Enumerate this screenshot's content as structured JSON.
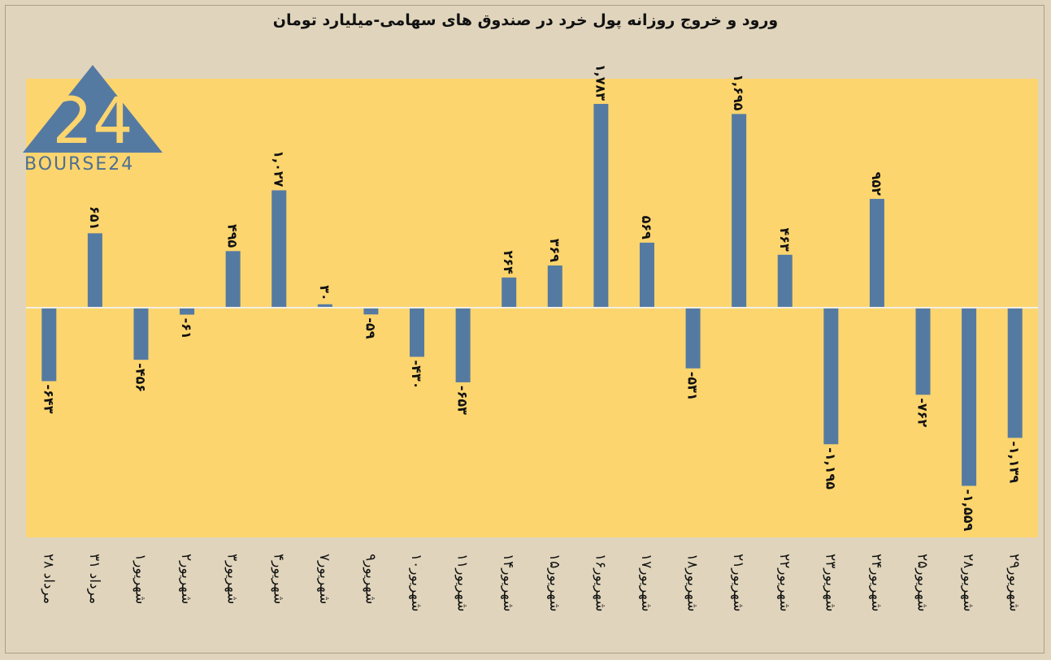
{
  "chart_data": {
    "type": "bar",
    "title": "ورود و خروج روزانه پول خرد در صندوق های سهامی-میلیارد تومان",
    "categories": [
      "۲۸ مرداد",
      "۳۱ مرداد",
      "۱شهریور",
      "۲شهریور",
      "۳شهریور",
      "۴شهریور",
      "۷شهریور",
      "۹شهریور",
      "۱۰شهریور",
      "۱۱شهریور",
      "۱۴شهریور",
      "۱۵شهریور",
      "۱۶شهریور",
      "۱۷شهریور",
      "۱۸شهریور",
      "۲۱شهریور",
      "۲۲شهریور",
      "۲۳شهریور",
      "۲۴شهریور",
      "۲۵شهریور",
      "۲۸شهریور",
      "۲۹شهریور"
    ],
    "values": [
      -643,
      651,
      -456,
      -61,
      495,
      1027,
      30,
      -59,
      -430,
      -653,
      264,
      369,
      1783,
      569,
      -531,
      1695,
      463,
      -1195,
      952,
      -762,
      -1559,
      -1139
    ],
    "value_labels": [
      "-۶۴۳",
      "۶۵۱",
      "-۴۵۶",
      "-۶۱",
      "۴۹۵",
      "۱,۰۲۷",
      "۳۰",
      "-۵۹",
      "-۴۳۰",
      "-۶۵۳",
      "۲۶۴",
      "۳۶۹",
      "۱,۷۸۳",
      "۵۶۹",
      "-۵۳۱",
      "۱,۶۹۵",
      "۴۶۳",
      "-۱,۱۹۵",
      "۹۵۲",
      "-۷۶۲",
      "-۱,۵۵۹",
      "-۱,۱۳۹"
    ],
    "ylim": [
      -2000,
      2000
    ],
    "grid": false,
    "colors": {
      "bar": "#557aa2",
      "plot_bg": "#fcd56e",
      "page_bg": "#e0d5bc",
      "zero_line": "#f2efe6"
    }
  },
  "logo": {
    "text": "BOURSE24",
    "mark": "24"
  }
}
